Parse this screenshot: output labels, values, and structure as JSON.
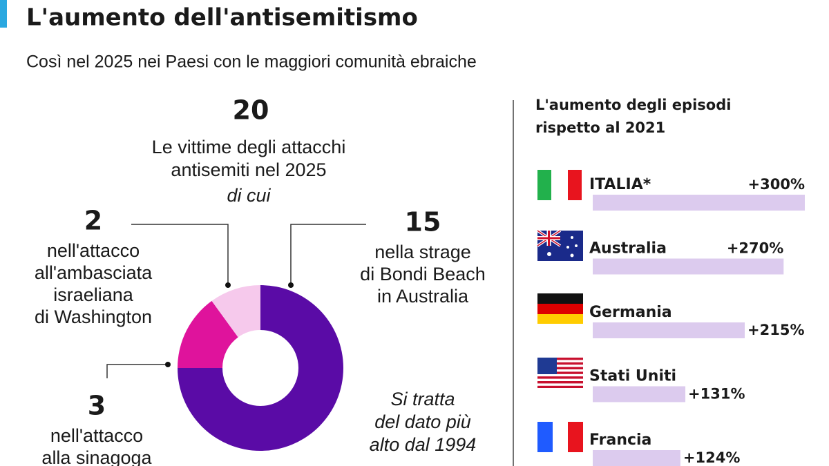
{
  "title": "L'aumento dell'antisemitismo",
  "subtitle": "Così nel 2025 nei Paesi con le maggiori comunità ebraiche",
  "chart_data": [
    {
      "type": "pie",
      "donut": true,
      "total": {
        "value": 20,
        "text": [
          "Le vittime degli attacchi",
          "antisemiti nel 2025"
        ],
        "note": "di cui"
      },
      "categories": [
        [
          "nella strage",
          "di Bondi Beach",
          "in Australia"
        ],
        [
          "nell'attacco",
          "alla sinagoga"
        ],
        [
          "nell'attacco",
          "all'ambasciata",
          "israeliana",
          "di Washington"
        ]
      ],
      "values": [
        15,
        3,
        2
      ],
      "colors": [
        "#5a0ba6",
        "#df139c",
        "#f6c9ec"
      ],
      "annotation": [
        "Si tratta",
        "del dato più",
        "alto dal 1994"
      ]
    },
    {
      "type": "bar",
      "orientation": "horizontal",
      "title": [
        "L'aumento degli episodi",
        "rispetto al 2021"
      ],
      "categories": [
        "ITALIA*",
        "Australia",
        "Germania",
        "Stati Uniti",
        "Francia"
      ],
      "values": [
        300,
        270,
        215,
        131,
        124
      ],
      "value_labels": [
        "+300%",
        "+270%",
        "+215%",
        "+131%",
        "+124%"
      ],
      "color": "#dccbee",
      "xlim": [
        0,
        300
      ]
    }
  ]
}
